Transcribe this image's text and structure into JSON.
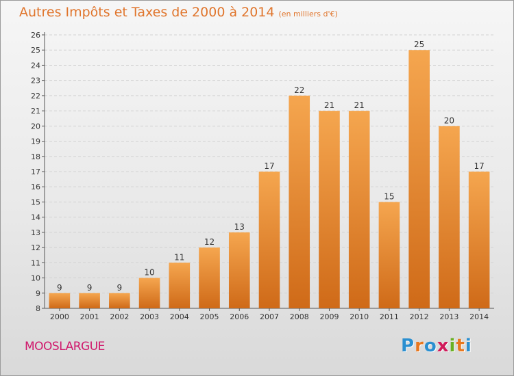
{
  "title": "Autres Impôts et Taxes de 2000 à 2014",
  "subtitle": "(en milliers d'€)",
  "commune": "MOOSLARGUE",
  "logo": {
    "letters": [
      "P",
      "r",
      "o",
      "x",
      "i",
      "t",
      "i"
    ],
    "colors": [
      "#2a8fd0",
      "#e8771e",
      "#2a8fd0",
      "#d01a5a",
      "#6ab023",
      "#e8771e",
      "#2a8fd0"
    ]
  },
  "colors": {
    "bar_light": "#f5a64f",
    "bar_dark": "#cf6a18",
    "title": "#e0752c",
    "commune": "#d0186c"
  },
  "chart_data": {
    "type": "bar",
    "title": "Autres Impôts et Taxes de 2000 à 2014",
    "subtitle": "(en milliers d'€)",
    "categories": [
      "2000",
      "2001",
      "2002",
      "2003",
      "2004",
      "2005",
      "2006",
      "2007",
      "2008",
      "2009",
      "2010",
      "2011",
      "2012",
      "2013",
      "2014"
    ],
    "values": [
      9,
      9,
      9,
      10,
      11,
      12,
      13,
      17,
      22,
      21,
      21,
      15,
      25,
      20,
      17
    ],
    "ylim": [
      8,
      26
    ],
    "yticks": [
      8,
      9,
      10,
      11,
      12,
      13,
      14,
      15,
      16,
      17,
      18,
      19,
      20,
      21,
      22,
      23,
      24,
      25,
      26
    ],
    "grid": true,
    "data_labels": true
  }
}
